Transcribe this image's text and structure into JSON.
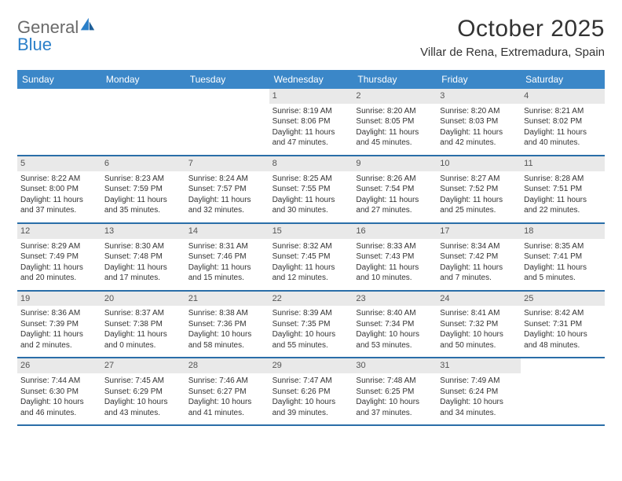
{
  "logo": {
    "text1": "General",
    "text2": "Blue"
  },
  "title": "October 2025",
  "location": "Villar de Rena, Extremadura, Spain",
  "colors": {
    "header_bg": "#3b87c8",
    "header_text": "#ffffff",
    "week_border": "#2a6ea8",
    "daynum_bg": "#e9e9e9",
    "logo_blue": "#2a7fc9",
    "logo_gray": "#6a6a6a"
  },
  "day_names": [
    "Sunday",
    "Monday",
    "Tuesday",
    "Wednesday",
    "Thursday",
    "Friday",
    "Saturday"
  ],
  "weeks": [
    [
      {
        "n": "",
        "sr": "",
        "ss": "",
        "dl": ""
      },
      {
        "n": "",
        "sr": "",
        "ss": "",
        "dl": ""
      },
      {
        "n": "",
        "sr": "",
        "ss": "",
        "dl": ""
      },
      {
        "n": "1",
        "sr": "Sunrise: 8:19 AM",
        "ss": "Sunset: 8:06 PM",
        "dl": "Daylight: 11 hours and 47 minutes."
      },
      {
        "n": "2",
        "sr": "Sunrise: 8:20 AM",
        "ss": "Sunset: 8:05 PM",
        "dl": "Daylight: 11 hours and 45 minutes."
      },
      {
        "n": "3",
        "sr": "Sunrise: 8:20 AM",
        "ss": "Sunset: 8:03 PM",
        "dl": "Daylight: 11 hours and 42 minutes."
      },
      {
        "n": "4",
        "sr": "Sunrise: 8:21 AM",
        "ss": "Sunset: 8:02 PM",
        "dl": "Daylight: 11 hours and 40 minutes."
      }
    ],
    [
      {
        "n": "5",
        "sr": "Sunrise: 8:22 AM",
        "ss": "Sunset: 8:00 PM",
        "dl": "Daylight: 11 hours and 37 minutes."
      },
      {
        "n": "6",
        "sr": "Sunrise: 8:23 AM",
        "ss": "Sunset: 7:59 PM",
        "dl": "Daylight: 11 hours and 35 minutes."
      },
      {
        "n": "7",
        "sr": "Sunrise: 8:24 AM",
        "ss": "Sunset: 7:57 PM",
        "dl": "Daylight: 11 hours and 32 minutes."
      },
      {
        "n": "8",
        "sr": "Sunrise: 8:25 AM",
        "ss": "Sunset: 7:55 PM",
        "dl": "Daylight: 11 hours and 30 minutes."
      },
      {
        "n": "9",
        "sr": "Sunrise: 8:26 AM",
        "ss": "Sunset: 7:54 PM",
        "dl": "Daylight: 11 hours and 27 minutes."
      },
      {
        "n": "10",
        "sr": "Sunrise: 8:27 AM",
        "ss": "Sunset: 7:52 PM",
        "dl": "Daylight: 11 hours and 25 minutes."
      },
      {
        "n": "11",
        "sr": "Sunrise: 8:28 AM",
        "ss": "Sunset: 7:51 PM",
        "dl": "Daylight: 11 hours and 22 minutes."
      }
    ],
    [
      {
        "n": "12",
        "sr": "Sunrise: 8:29 AM",
        "ss": "Sunset: 7:49 PM",
        "dl": "Daylight: 11 hours and 20 minutes."
      },
      {
        "n": "13",
        "sr": "Sunrise: 8:30 AM",
        "ss": "Sunset: 7:48 PM",
        "dl": "Daylight: 11 hours and 17 minutes."
      },
      {
        "n": "14",
        "sr": "Sunrise: 8:31 AM",
        "ss": "Sunset: 7:46 PM",
        "dl": "Daylight: 11 hours and 15 minutes."
      },
      {
        "n": "15",
        "sr": "Sunrise: 8:32 AM",
        "ss": "Sunset: 7:45 PM",
        "dl": "Daylight: 11 hours and 12 minutes."
      },
      {
        "n": "16",
        "sr": "Sunrise: 8:33 AM",
        "ss": "Sunset: 7:43 PM",
        "dl": "Daylight: 11 hours and 10 minutes."
      },
      {
        "n": "17",
        "sr": "Sunrise: 8:34 AM",
        "ss": "Sunset: 7:42 PM",
        "dl": "Daylight: 11 hours and 7 minutes."
      },
      {
        "n": "18",
        "sr": "Sunrise: 8:35 AM",
        "ss": "Sunset: 7:41 PM",
        "dl": "Daylight: 11 hours and 5 minutes."
      }
    ],
    [
      {
        "n": "19",
        "sr": "Sunrise: 8:36 AM",
        "ss": "Sunset: 7:39 PM",
        "dl": "Daylight: 11 hours and 2 minutes."
      },
      {
        "n": "20",
        "sr": "Sunrise: 8:37 AM",
        "ss": "Sunset: 7:38 PM",
        "dl": "Daylight: 11 hours and 0 minutes."
      },
      {
        "n": "21",
        "sr": "Sunrise: 8:38 AM",
        "ss": "Sunset: 7:36 PM",
        "dl": "Daylight: 10 hours and 58 minutes."
      },
      {
        "n": "22",
        "sr": "Sunrise: 8:39 AM",
        "ss": "Sunset: 7:35 PM",
        "dl": "Daylight: 10 hours and 55 minutes."
      },
      {
        "n": "23",
        "sr": "Sunrise: 8:40 AM",
        "ss": "Sunset: 7:34 PM",
        "dl": "Daylight: 10 hours and 53 minutes."
      },
      {
        "n": "24",
        "sr": "Sunrise: 8:41 AM",
        "ss": "Sunset: 7:32 PM",
        "dl": "Daylight: 10 hours and 50 minutes."
      },
      {
        "n": "25",
        "sr": "Sunrise: 8:42 AM",
        "ss": "Sunset: 7:31 PM",
        "dl": "Daylight: 10 hours and 48 minutes."
      }
    ],
    [
      {
        "n": "26",
        "sr": "Sunrise: 7:44 AM",
        "ss": "Sunset: 6:30 PM",
        "dl": "Daylight: 10 hours and 46 minutes."
      },
      {
        "n": "27",
        "sr": "Sunrise: 7:45 AM",
        "ss": "Sunset: 6:29 PM",
        "dl": "Daylight: 10 hours and 43 minutes."
      },
      {
        "n": "28",
        "sr": "Sunrise: 7:46 AM",
        "ss": "Sunset: 6:27 PM",
        "dl": "Daylight: 10 hours and 41 minutes."
      },
      {
        "n": "29",
        "sr": "Sunrise: 7:47 AM",
        "ss": "Sunset: 6:26 PM",
        "dl": "Daylight: 10 hours and 39 minutes."
      },
      {
        "n": "30",
        "sr": "Sunrise: 7:48 AM",
        "ss": "Sunset: 6:25 PM",
        "dl": "Daylight: 10 hours and 37 minutes."
      },
      {
        "n": "31",
        "sr": "Sunrise: 7:49 AM",
        "ss": "Sunset: 6:24 PM",
        "dl": "Daylight: 10 hours and 34 minutes."
      },
      {
        "n": "",
        "sr": "",
        "ss": "",
        "dl": ""
      }
    ]
  ]
}
